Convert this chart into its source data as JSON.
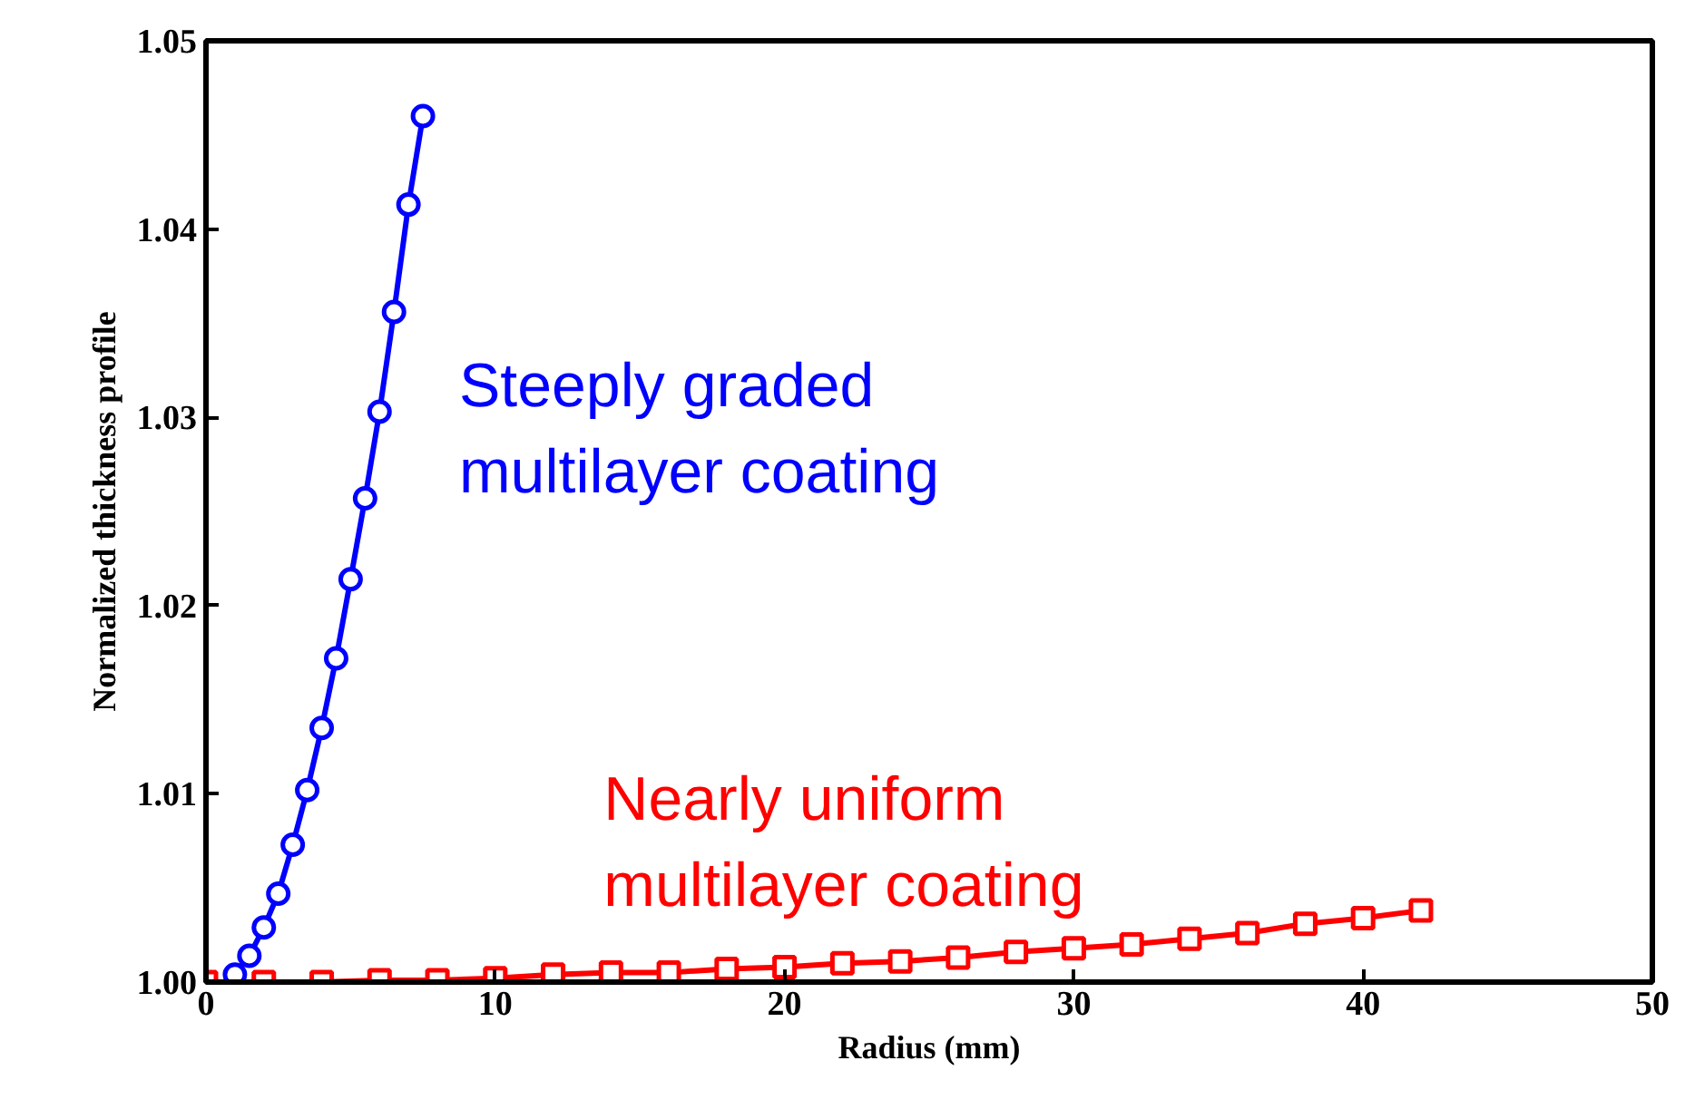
{
  "chart_data": {
    "type": "line",
    "xlabel": "Radius (mm)",
    "ylabel": "Normalized thickness profile",
    "xlim": [
      0,
      50
    ],
    "ylim": [
      1.0,
      1.05
    ],
    "xticks": [
      0,
      10,
      20,
      30,
      40,
      50
    ],
    "yticks": [
      {
        "value": 1.0,
        "label": "1.00"
      },
      {
        "value": 1.01,
        "label": "1.01"
      },
      {
        "value": 1.02,
        "label": "1.02"
      },
      {
        "value": 1.03,
        "label": "1.03"
      },
      {
        "value": 1.04,
        "label": "1.04"
      },
      {
        "value": 1.05,
        "label": "1.05"
      }
    ],
    "grid": false,
    "line_style": "solid",
    "series": [
      {
        "name": "Steeply graded\nmultilayer coating",
        "color": "#0000ff",
        "marker": "circle",
        "x": [
          1,
          1.5,
          2,
          2.5,
          3,
          3.5,
          4,
          4.5,
          5,
          5.5,
          6,
          6.5,
          7,
          7.5
        ],
        "values": [
          1.0004,
          1.0014,
          1.0029,
          1.0047,
          1.0073,
          1.0102,
          1.0135,
          1.0172,
          1.0214,
          1.0257,
          1.0303,
          1.0356,
          1.0413,
          1.046
        ]
      },
      {
        "name": "Nearly uniform\nmultilayer coating",
        "color": "#ff0000",
        "marker": "square",
        "x": [
          0,
          2,
          4,
          6,
          8,
          10,
          12,
          14,
          16,
          18,
          20,
          22,
          24,
          26,
          28,
          30,
          32,
          34,
          36,
          38,
          40,
          42
        ],
        "values": [
          1.0,
          1.0,
          1.0,
          1.0001,
          1.0001,
          1.0002,
          1.0004,
          1.0005,
          1.0005,
          1.0007,
          1.0008,
          1.001,
          1.0011,
          1.0013,
          1.0016,
          1.0018,
          1.002,
          1.0023,
          1.0026,
          1.0031,
          1.0034,
          1.0038
        ]
      }
    ]
  }
}
